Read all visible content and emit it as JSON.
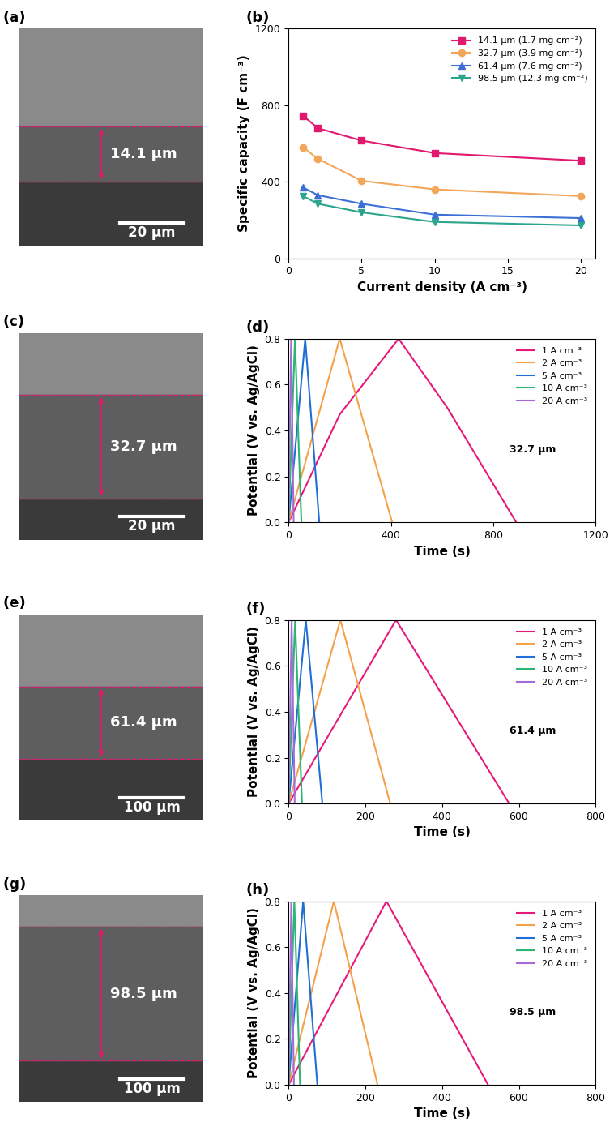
{
  "chart_data": [
    {
      "type": "line",
      "panel": "(b)",
      "x_label": "Current density (A cm⁻³)",
      "y_label": "Specific capacity (F cm⁻³)",
      "x": [
        1,
        2,
        5,
        10,
        20
      ],
      "xlim": [
        0,
        21
      ],
      "xticks": [
        0,
        5,
        10,
        15,
        20
      ],
      "ylim": [
        0,
        1200
      ],
      "yticks": [
        0,
        400,
        800,
        1200
      ],
      "legend": "upper right",
      "series": [
        {
          "name": "14.1 μm (1.7 mg cm⁻²)",
          "color": "#e0196e",
          "marker": "square",
          "values": [
            745,
            680,
            615,
            550,
            510
          ]
        },
        {
          "name": "32.7 μm (3.9 mg cm⁻²)",
          "color": "#f2a65a",
          "marker": "circle",
          "values": [
            580,
            520,
            405,
            360,
            325
          ]
        },
        {
          "name": "61.4 μm (7.6 mg cm⁻²)",
          "color": "#3b6fd6",
          "marker": "triangle_up",
          "values": [
            370,
            330,
            285,
            228,
            210
          ]
        },
        {
          "name": "98.5 μm (12.3 mg cm⁻²)",
          "color": "#2ca58d",
          "marker": "triangle_down",
          "values": [
            325,
            285,
            240,
            190,
            172
          ]
        }
      ]
    },
    {
      "type": "line",
      "panel": "(d)",
      "annotation": "32.7 μm",
      "x_label": "Time (s)",
      "y_label": "Potential (V vs. Ag/AgCl)",
      "xlim": [
        0,
        1200
      ],
      "xticks": [
        0,
        400,
        800,
        1200
      ],
      "ylim": [
        0,
        0.8
      ],
      "yticks": [
        0.0,
        0.2,
        0.4,
        0.6,
        0.8
      ],
      "legend": "upper right",
      "series": [
        {
          "name": "1 A cm⁻³",
          "color": "#e6187a",
          "x": [
            0,
            200,
            430,
            620,
            890
          ],
          "values": [
            0,
            0.47,
            0.8,
            0.5,
            0
          ]
        },
        {
          "name": "2 A cm⁻³",
          "color": "#f5a04a",
          "x": [
            0,
            200,
            405
          ],
          "values": [
            0,
            0.8,
            0
          ]
        },
        {
          "name": "5 A cm⁻³",
          "color": "#1f6fd6",
          "x": [
            0,
            65,
            120
          ],
          "values": [
            0,
            0.8,
            0
          ]
        },
        {
          "name": "10 A cm⁻³",
          "color": "#2bb673",
          "x": [
            0,
            25,
            50
          ],
          "values": [
            0,
            0.8,
            0
          ]
        },
        {
          "name": "20 A cm⁻³",
          "color": "#a56cd9",
          "x": [
            0,
            10,
            20
          ],
          "values": [
            0,
            0.8,
            0
          ]
        }
      ]
    },
    {
      "type": "line",
      "panel": "(f)",
      "annotation": "61.4 μm",
      "x_label": "Time (s)",
      "y_label": "Potential (V vs. Ag/AgCl)",
      "xlim": [
        0,
        800
      ],
      "xticks": [
        0,
        200,
        400,
        600,
        800
      ],
      "ylim": [
        0,
        0.8
      ],
      "yticks": [
        0.0,
        0.2,
        0.4,
        0.6,
        0.8
      ],
      "legend": "upper right",
      "series": [
        {
          "name": "1 A cm⁻³",
          "color": "#e6187a",
          "x": [
            0,
            280,
            575
          ],
          "values": [
            0,
            0.8,
            0
          ]
        },
        {
          "name": "2 A cm⁻³",
          "color": "#f5a04a",
          "x": [
            0,
            135,
            265
          ],
          "values": [
            0,
            0.8,
            0
          ]
        },
        {
          "name": "5 A cm⁻³",
          "color": "#1f6fd6",
          "x": [
            0,
            45,
            88
          ],
          "values": [
            0,
            0.8,
            0
          ]
        },
        {
          "name": "10 A cm⁻³",
          "color": "#2bb673",
          "x": [
            0,
            17,
            35
          ],
          "values": [
            0,
            0.8,
            0
          ]
        },
        {
          "name": "20 A cm⁻³",
          "color": "#a56cd9",
          "x": [
            0,
            8,
            16
          ],
          "values": [
            0,
            0.8,
            0
          ]
        }
      ]
    },
    {
      "type": "line",
      "panel": "(h)",
      "annotation": "98.5 μm",
      "x_label": "Time (s)",
      "y_label": "Potential (V vs. Ag/AgCl)",
      "xlim": [
        0,
        800
      ],
      "xticks": [
        0,
        200,
        400,
        600,
        800
      ],
      "ylim": [
        0,
        0.8
      ],
      "yticks": [
        0.0,
        0.2,
        0.4,
        0.6,
        0.8
      ],
      "legend": "upper right",
      "series": [
        {
          "name": "1 A cm⁻³",
          "color": "#e6187a",
          "x": [
            0,
            255,
            520
          ],
          "values": [
            0,
            0.8,
            0
          ]
        },
        {
          "name": "2 A cm⁻³",
          "color": "#f5a04a",
          "x": [
            0,
            118,
            232
          ],
          "values": [
            0,
            0.8,
            0
          ]
        },
        {
          "name": "5 A cm⁻³",
          "color": "#1f6fd6",
          "x": [
            0,
            38,
            75
          ],
          "values": [
            0,
            0.8,
            0
          ]
        },
        {
          "name": "10 A cm⁻³",
          "color": "#2bb673",
          "x": [
            0,
            15,
            30
          ],
          "values": [
            0,
            0.8,
            0
          ]
        },
        {
          "name": "20 A cm⁻³",
          "color": "#a56cd9",
          "x": [
            0,
            7,
            14
          ],
          "values": [
            0,
            0.8,
            0
          ]
        }
      ]
    }
  ],
  "images": [
    {
      "panel": "(a)",
      "thickness_label": "14.1 μm",
      "scale_bar": "20 μm"
    },
    {
      "panel": "(c)",
      "thickness_label": "32.7 μm",
      "scale_bar": "20 μm"
    },
    {
      "panel": "(e)",
      "thickness_label": "61.4 μm",
      "scale_bar": "100 μm"
    },
    {
      "panel": "(g)",
      "thickness_label": "98.5 μm",
      "scale_bar": "100 μm"
    }
  ]
}
